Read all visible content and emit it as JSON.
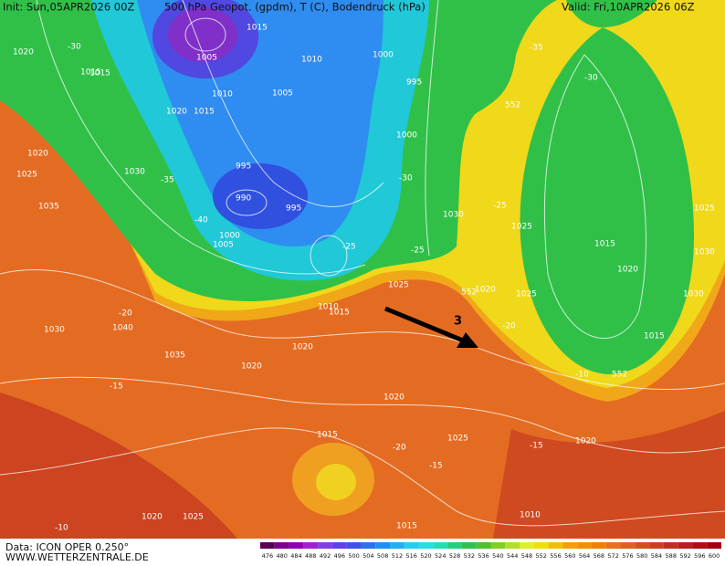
{
  "header": {
    "init": "Init: Sun,05APR2026 00Z",
    "product": "500 hPa Geopot. (gpdm), T (C), Bodendruck (hPa)",
    "valid": "Valid: Fri,10APR2026 06Z"
  },
  "footer": {
    "source": "Data: ICON OPER 0.250°",
    "site": "WWW.WETTERZENTRALE.DE"
  },
  "colorbar": {
    "labels": [
      476,
      480,
      484,
      488,
      492,
      496,
      500,
      504,
      508,
      512,
      516,
      520,
      524,
      528,
      532,
      536,
      540,
      544,
      548,
      552,
      556,
      560,
      564,
      568,
      572,
      576,
      580,
      584,
      588,
      592,
      596,
      600
    ],
    "colors": [
      "#5a0050",
      "#7a0090",
      "#9000b0",
      "#a020d0",
      "#8040e0",
      "#6040f0",
      "#4050f0",
      "#3070f0",
      "#2090f0",
      "#20b0f0",
      "#20d0f0",
      "#20e0e0",
      "#20e0b0",
      "#20d080",
      "#30c050",
      "#50c030",
      "#80d020",
      "#b0e020",
      "#e0f020",
      "#f0e000",
      "#f0c000",
      "#f0a000",
      "#f09000",
      "#f08000",
      "#e87020",
      "#e06020",
      "#d05020",
      "#c84020",
      "#c03020",
      "#b82020",
      "#b01010",
      "#a00010"
    ]
  },
  "map": {
    "annotation": "3",
    "labels": [
      "1020",
      "1015",
      "1005",
      "1010",
      "1005",
      "1015",
      "1010",
      "1000",
      "995",
      "1020",
      "1015",
      "1000",
      "995",
      "990",
      "995",
      "1000",
      "1005",
      "1010",
      "1015",
      "1020",
      "1025",
      "1030",
      "1035",
      "1040",
      "1030",
      "1035",
      "1020",
      "1025",
      "1030",
      "1025",
      "1015",
      "1020",
      "1025",
      "1030",
      "1030",
      "1025",
      "1015",
      "1020",
      "1025",
      "1015",
      "1020",
      "1015",
      "1010",
      "1020",
      "1025",
      "1015",
      "1020",
      "1020",
      "-30",
      "-35",
      "-40",
      "-25",
      "-20",
      "-15",
      "-10",
      "-30",
      "-25",
      "-20",
      "-15",
      "-10",
      "552",
      "552",
      "552",
      "-35",
      "-30",
      "-25",
      "-20",
      "-15"
    ]
  }
}
